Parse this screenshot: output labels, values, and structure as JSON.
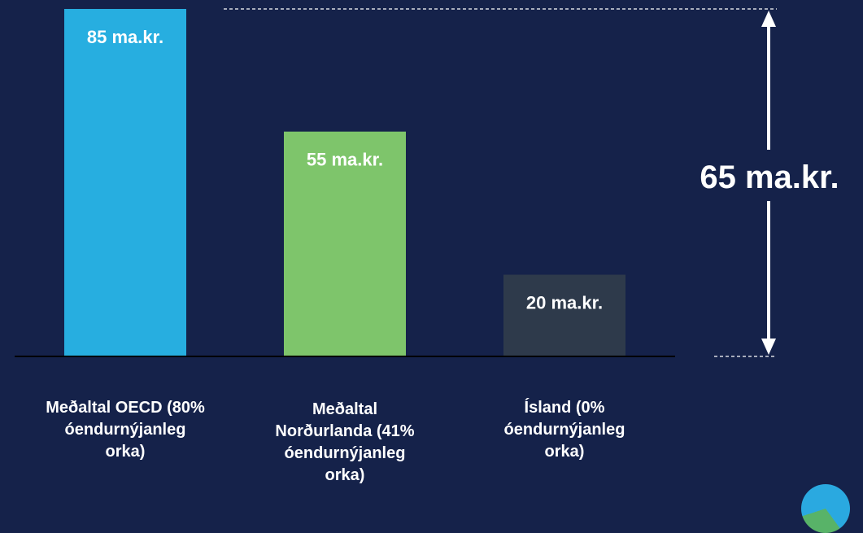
{
  "chart_data": {
    "type": "bar",
    "categories": [
      "Meðaltal OECD (80% óendurnýjanleg orka)",
      "Meðaltal Norðurlanda (41% óendurnýjanleg orka)",
      "Ísland (0% óendurnýjanleg orka)"
    ],
    "category_lines": [
      [
        "Meðaltal OECD (80%",
        "óendurnýjanleg",
        "orka)"
      ],
      [
        "Meðaltal",
        "Norðurlanda (41%",
        "óendurnýjanleg",
        "orka)"
      ],
      [
        "Ísland (0%",
        "óendurnýjanleg",
        "orka)"
      ]
    ],
    "values": [
      85,
      55,
      20
    ],
    "data_labels": [
      "85 ma.kr.",
      "55 ma.kr.",
      "20 ma.kr."
    ],
    "colors": [
      "#27aee0",
      "#7ec56b",
      "#2e3a4b"
    ],
    "ylim": [
      0,
      85
    ],
    "difference": {
      "from": 85,
      "to": 20,
      "label": "65 ma.kr."
    }
  },
  "colors": {
    "background": "#15224a",
    "text": "#ffffff",
    "baseline": "#000000"
  }
}
